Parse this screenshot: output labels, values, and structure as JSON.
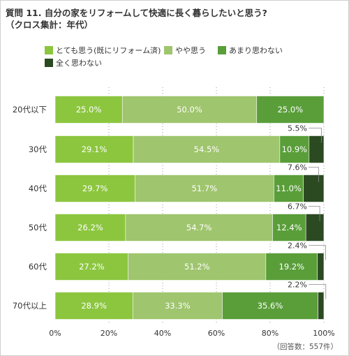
{
  "title_line1": "質問 11. 自分の家をリフォームして快適に長く暮らしたいと思う?",
  "title_line2": "（クロス集計：年代）",
  "note": "（回答数：557件）",
  "colors": {
    "series": [
      "#8cc63f",
      "#9fc56e",
      "#5a9e3a",
      "#2b4a22"
    ],
    "grid": "#9a9a9a"
  },
  "chart_data": {
    "type": "bar",
    "orientation": "horizontal",
    "stacked": true,
    "categories": [
      "20代以下",
      "30代",
      "40代",
      "50代",
      "60代",
      "70代以上"
    ],
    "series": [
      {
        "name": "とても思う(既にリフォーム済)",
        "values": [
          25.0,
          29.1,
          29.7,
          26.2,
          27.2,
          28.9
        ]
      },
      {
        "name": "やや思う",
        "values": [
          50.0,
          54.5,
          51.7,
          54.7,
          51.2,
          33.3
        ]
      },
      {
        "name": "あまり思わない",
        "values": [
          25.0,
          10.9,
          11.0,
          12.4,
          19.2,
          35.6
        ]
      },
      {
        "name": "全く思わない",
        "values": [
          0.0,
          5.5,
          7.6,
          6.7,
          2.4,
          2.2
        ]
      }
    ],
    "data_labels": [
      [
        "25.0%",
        "50.0%",
        "25.0%",
        ""
      ],
      [
        "29.1%",
        "54.5%",
        "10.9%",
        "5.5%"
      ],
      [
        "29.7%",
        "51.7%",
        "11.0%",
        "7.6%"
      ],
      [
        "26.2%",
        "54.7%",
        "12.4%",
        "6.7%"
      ],
      [
        "27.2%",
        "51.2%",
        "19.2%",
        "2.4%"
      ],
      [
        "28.9%",
        "33.3%",
        "35.6%",
        "2.2%"
      ]
    ],
    "xlim": [
      0,
      100
    ],
    "xticks": [
      0,
      20,
      40,
      60,
      80,
      100
    ],
    "xtick_labels": [
      "0%",
      "20%",
      "40%",
      "60%",
      "80%",
      "100%"
    ],
    "grid": true,
    "legend_position": "top"
  }
}
